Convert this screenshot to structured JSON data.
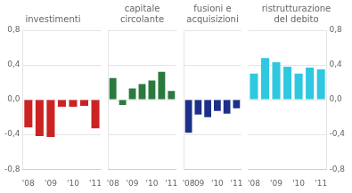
{
  "chart_data": [
    {
      "type": "bar",
      "title": "investimenti",
      "categories": [
        "'08",
        null,
        "'09",
        null,
        "'10",
        null,
        "'11"
      ],
      "values": [
        -0.32,
        -0.42,
        -0.43,
        -0.08,
        -0.08,
        -0.07,
        -0.33
      ],
      "color": "#cc2222",
      "ylim": [
        -0.8,
        0.8
      ],
      "yticks": [
        {
          "value": -0.8,
          "label": "-0,8"
        },
        {
          "value": -0.4,
          "label": "-0,4"
        },
        {
          "value": 0.0,
          "label": "0,0"
        },
        {
          "value": 0.4,
          "label": "0,4"
        },
        {
          "value": 0.8,
          "label": "0,8"
        }
      ],
      "grid": true
    },
    {
      "type": "bar",
      "title": "capitale\ncircolante",
      "categories": [
        "'08",
        null,
        "'09",
        null,
        "'10",
        null,
        "'11"
      ],
      "values": [
        0.25,
        -0.06,
        0.13,
        0.18,
        0.22,
        0.32,
        0.1
      ],
      "color": "#2a7a40",
      "ylim": [
        -0.8,
        0.8
      ],
      "yticks": [
        {
          "value": -0.8,
          "label": "-0,8"
        },
        {
          "value": -0.4,
          "label": "-0,4"
        },
        {
          "value": 0.0,
          "label": "0,0"
        },
        {
          "value": 0.4,
          "label": "0,4"
        },
        {
          "value": 0.8,
          "label": "0,8"
        }
      ],
      "grid": true,
      "tick_labels": "x"
    },
    {
      "type": "bar",
      "title": "fusioni e\nacquisizioni",
      "categories": [
        "'08",
        "'09",
        null,
        "'10",
        null,
        "'11"
      ],
      "values": [
        -0.38,
        -0.17,
        -0.2,
        -0.13,
        -0.16,
        -0.1
      ],
      "color": "#1c2f8a",
      "ylim": [
        -0.8,
        0.8
      ],
      "yticks": [
        {
          "value": -0.8,
          "label": "-0,8"
        },
        {
          "value": -0.4,
          "label": "-0,4"
        },
        {
          "value": 0.0,
          "label": "0,0"
        },
        {
          "value": 0.4,
          "label": "0,4"
        },
        {
          "value": 0.8,
          "label": "0,8"
        }
      ],
      "grid": true,
      "tick_labels": "x"
    },
    {
      "type": "bar",
      "title": "ristrutturazione\ndel debito",
      "categories": [
        "'08",
        null,
        "'09",
        null,
        "'10",
        null,
        "'11"
      ],
      "values": [
        0.3,
        0.48,
        0.43,
        0.38,
        0.3,
        0.37,
        0.35
      ],
      "color": "#2ec8e0",
      "ylim": [
        -0.8,
        0.8
      ],
      "yticks": [
        {
          "value": -0.8,
          "label": "-0,8"
        },
        {
          "value": -0.4,
          "label": "-0,4"
        },
        {
          "value": 0.0,
          "label": "0,0"
        },
        {
          "value": 0.4,
          "label": "0,4"
        },
        {
          "value": 0.8,
          "label": "0,8"
        }
      ],
      "grid": true
    }
  ]
}
